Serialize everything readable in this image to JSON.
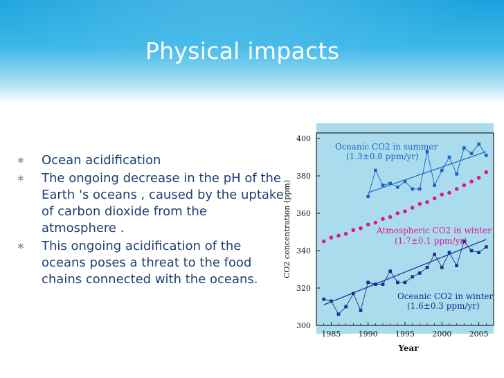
{
  "slide": {
    "title": "Physical impacts",
    "bullets": [
      "Ocean acidification",
      "The ongoing decrease in the pH of the Earth 's oceans , caused by the uptake of carbon dioxide from the atmosphere .",
      "This ongoing acidification of the oceans poses a threat to the food chains connected with the oceans."
    ],
    "bullet_marker": "∗"
  },
  "colors": {
    "header": "#1aa3de",
    "bullet_text": "#1d3f6e",
    "chart_bg": "#aadcee",
    "summer_series": "#1a63c4",
    "atmos_series": "#e0168f",
    "winter_series": "#1a2c8c"
  },
  "chart_data": {
    "type": "line",
    "ylabel": "CO2 concentration (ppm)",
    "xlabel": "Year",
    "xlim": [
      1983,
      2007
    ],
    "ylim": [
      300,
      403
    ],
    "xticks": [
      1985,
      1990,
      1995,
      2000,
      2005
    ],
    "yticks": [
      300,
      320,
      340,
      360,
      380,
      400
    ],
    "series": [
      {
        "name": "Oceanic CO2 in summer",
        "rate": "(1.3±0.8 ppm/yr)",
        "color": "#1a63c4",
        "style": "markers+line",
        "x": [
          1990,
          1991,
          1992,
          1993,
          1994,
          1995,
          1996,
          1997,
          1998,
          1999,
          2000,
          2001,
          2002,
          2003,
          2004,
          2005,
          2006
        ],
        "y": [
          369,
          383,
          375,
          376,
          374,
          377,
          373,
          373,
          393,
          375,
          383,
          390,
          381,
          395,
          392,
          397,
          391
        ],
        "trend": [
          [
            1990,
            371
          ],
          [
            2006,
            393
          ]
        ]
      },
      {
        "name": "Atmospheric CO2 in winter",
        "rate": "(1.7±0.1 ppm/yr)",
        "color": "#e0168f",
        "style": "markers",
        "x": [
          1984,
          1985,
          1986,
          1987,
          1988,
          1989,
          1990,
          1991,
          1992,
          1993,
          1994,
          1995,
          1996,
          1997,
          1998,
          1999,
          2000,
          2001,
          2002,
          2003,
          2004,
          2005,
          2006
        ],
        "y": [
          345,
          347,
          348,
          349,
          351,
          352,
          354,
          355,
          357,
          358,
          360,
          361,
          363,
          365,
          366,
          368,
          370,
          371,
          373,
          375,
          377,
          379,
          382
        ]
      },
      {
        "name": "Oceanic CO2 in winter",
        "rate": "(1.6±0.3 ppm/yr)",
        "color": "#1a2c8c",
        "style": "markers+line",
        "x": [
          1984,
          1985,
          1986,
          1987,
          1988,
          1989,
          1990,
          1991,
          1992,
          1993,
          1994,
          1995,
          1996,
          1997,
          1998,
          1999,
          2000,
          2001,
          2002,
          2003,
          2004,
          2005,
          2006
        ],
        "y": [
          314,
          313,
          306,
          310,
          317,
          308,
          323,
          322,
          322,
          329,
          323,
          323,
          326,
          328,
          331,
          338,
          331,
          339,
          332,
          345,
          340,
          339,
          342
        ],
        "trend": [
          [
            1984,
            311
          ],
          [
            2006,
            346
          ]
        ]
      }
    ]
  }
}
